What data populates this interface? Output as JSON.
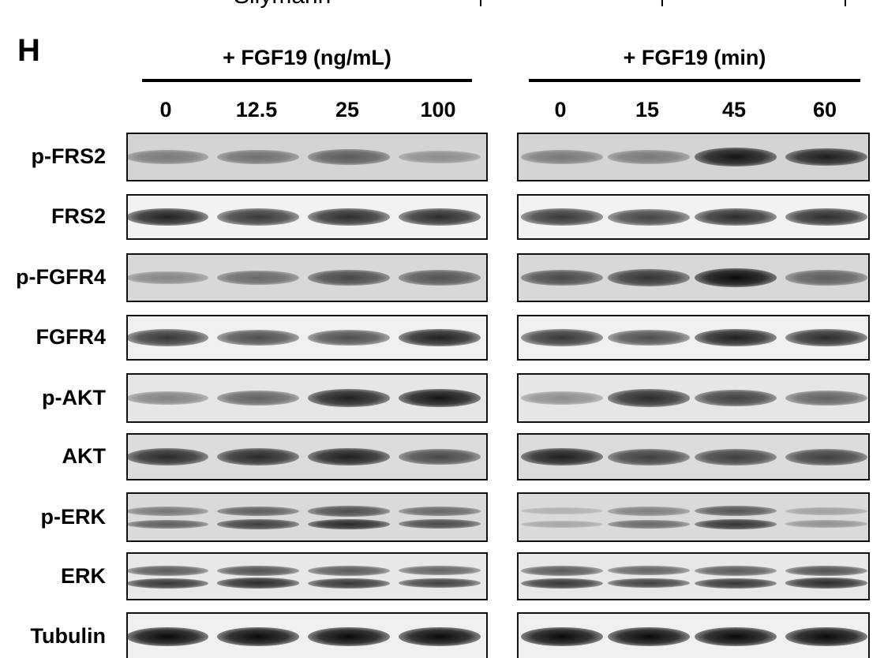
{
  "top_partial_label": "Silymarin",
  "panel_label": "H",
  "groups": [
    {
      "title": "+ FGF19 (ng/mL)",
      "lanes": [
        "0",
        "12.5",
        "25",
        "100"
      ]
    },
    {
      "title": "+ FGF19 (min)",
      "lanes": [
        "0",
        "15",
        "45",
        "60"
      ]
    }
  ],
  "rows": [
    {
      "label": "p-FRS2",
      "bg": "#d4d4d4",
      "double": false,
      "intensity": [
        [
          0.45,
          0.5,
          0.6,
          0.35
        ],
        [
          0.45,
          0.45,
          0.95,
          0.9
        ]
      ]
    },
    {
      "label": "FRS2",
      "bg": "#f2f2f2",
      "double": false,
      "intensity": [
        [
          0.9,
          0.8,
          0.85,
          0.85
        ],
        [
          0.8,
          0.75,
          0.85,
          0.85
        ]
      ]
    },
    {
      "label": "p-FGFR4",
      "bg": "#d8d8d8",
      "double": false,
      "intensity": [
        [
          0.4,
          0.55,
          0.7,
          0.65
        ],
        [
          0.7,
          0.8,
          1.0,
          0.6
        ]
      ]
    },
    {
      "label": "FGFR4",
      "bg": "#f0f0f0",
      "double": false,
      "intensity": [
        [
          0.8,
          0.7,
          0.7,
          0.9
        ],
        [
          0.8,
          0.7,
          0.9,
          0.85
        ]
      ]
    },
    {
      "label": "p-AKT",
      "bg": "#e6e6e6",
      "double": false,
      "intensity": [
        [
          0.45,
          0.6,
          0.9,
          0.95
        ],
        [
          0.4,
          0.85,
          0.75,
          0.6
        ]
      ]
    },
    {
      "label": "AKT",
      "bg": "#dcdcdc",
      "double": false,
      "intensity": [
        [
          0.85,
          0.85,
          0.9,
          0.7
        ],
        [
          0.9,
          0.75,
          0.75,
          0.75
        ]
      ]
    },
    {
      "label": "p-ERK",
      "bg": "#dadada",
      "double": true,
      "intensity": [
        [
          0.6,
          0.75,
          0.85,
          0.7
        ],
        [
          0.25,
          0.55,
          0.8,
          0.35
        ]
      ]
    },
    {
      "label": "ERK",
      "bg": "#e8e8e8",
      "double": true,
      "intensity": [
        [
          0.8,
          0.85,
          0.8,
          0.75
        ],
        [
          0.8,
          0.75,
          0.8,
          0.85
        ]
      ]
    },
    {
      "label": "Tubulin",
      "bg": "#f0f0f0",
      "double": false,
      "intensity": [
        [
          1,
          1,
          1,
          1
        ],
        [
          1,
          1,
          1,
          1
        ]
      ]
    }
  ]
}
